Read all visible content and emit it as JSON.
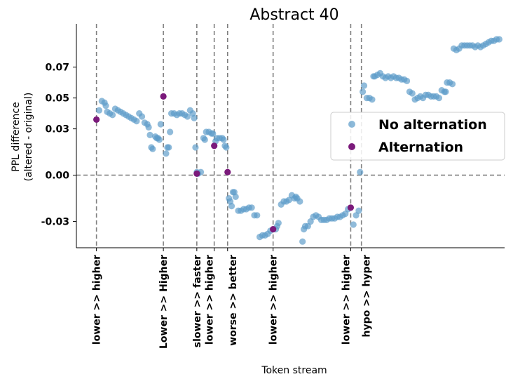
{
  "chart_data": {
    "type": "scatter",
    "title": "Abstract 40",
    "xlabel": "Token stream",
    "ylabel": [
      "PPL difference",
      "(altered - original)"
    ],
    "ylim": [
      -0.047,
      0.098
    ],
    "xlim": [
      -15,
      305
    ],
    "yticks": [
      {
        "value": 0.07,
        "label": "0.07"
      },
      {
        "value": 0.05,
        "label": "0.05"
      },
      {
        "value": 0.03,
        "label": "0.03"
      },
      {
        "value": 0.0,
        "label": "0.00"
      },
      {
        "value": -0.03,
        "label": "-0.03"
      }
    ],
    "hline": 0,
    "vlines": [
      {
        "x": 0,
        "label": "lower >> higher"
      },
      {
        "x": 50,
        "label": "Lower >> Higher"
      },
      {
        "x": 75,
        "label": "slower >> faster"
      },
      {
        "x": 88,
        "label": "lower >> higher"
      },
      {
        "x": 98,
        "label": "worse >> better"
      },
      {
        "x": 132,
        "label": "lower >> higher"
      },
      {
        "x": 190,
        "label": "lower >> higher"
      },
      {
        "x": 198,
        "label": "hypo >> hyper"
      }
    ],
    "legend": {
      "position": "right",
      "entries": [
        "No alternation",
        "Alternation"
      ]
    },
    "colors": {
      "no_alternation": "#5b9bc9",
      "alternation": "#7b1a7b",
      "grid_line": "#808080"
    },
    "series": [
      {
        "name": "No alternation",
        "points": [
          [
            2,
            0.042
          ],
          [
            4,
            0.048
          ],
          [
            6,
            0.047
          ],
          [
            7,
            0.045
          ],
          [
            8,
            0.041
          ],
          [
            10,
            0.04
          ],
          [
            12,
            0.039
          ],
          [
            14,
            0.043
          ],
          [
            16,
            0.042
          ],
          [
            18,
            0.041
          ],
          [
            20,
            0.04
          ],
          [
            22,
            0.039
          ],
          [
            24,
            0.038
          ],
          [
            26,
            0.037
          ],
          [
            28,
            0.036
          ],
          [
            30,
            0.035
          ],
          [
            32,
            0.04
          ],
          [
            34,
            0.038
          ],
          [
            36,
            0.034
          ],
          [
            38,
            0.033
          ],
          [
            39,
            0.031
          ],
          [
            40,
            0.026
          ],
          [
            41,
            0.018
          ],
          [
            42,
            0.017
          ],
          [
            44,
            0.025
          ],
          [
            45,
            0.024
          ],
          [
            46,
            0.024
          ],
          [
            47,
            0.023
          ],
          [
            48,
            0.033
          ],
          [
            52,
            0.014
          ],
          [
            53,
            0.018
          ],
          [
            54,
            0.018
          ],
          [
            55,
            0.028
          ],
          [
            56,
            0.04
          ],
          [
            58,
            0.04
          ],
          [
            60,
            0.039
          ],
          [
            62,
            0.04
          ],
          [
            64,
            0.04
          ],
          [
            66,
            0.039
          ],
          [
            68,
            0.038
          ],
          [
            70,
            0.042
          ],
          [
            72,
            0.04
          ],
          [
            73,
            0.037
          ],
          [
            74,
            0.018
          ],
          [
            75,
            0.002
          ],
          [
            76,
            0.001
          ],
          [
            78,
            0.002
          ],
          [
            80,
            0.024
          ],
          [
            81,
            0.023
          ],
          [
            82,
            0.028
          ],
          [
            84,
            0.028
          ],
          [
            86,
            0.027
          ],
          [
            87,
            0.027
          ],
          [
            89,
            0.022
          ],
          [
            90,
            0.024
          ],
          [
            92,
            0.024
          ],
          [
            94,
            0.024
          ],
          [
            95,
            0.023
          ],
          [
            96,
            0.019
          ],
          [
            97,
            0.018
          ],
          [
            99,
            -0.015
          ],
          [
            100,
            -0.017
          ],
          [
            101,
            -0.02
          ],
          [
            102,
            -0.011
          ],
          [
            103,
            -0.011
          ],
          [
            104,
            -0.014
          ],
          [
            106,
            -0.023
          ],
          [
            108,
            -0.023
          ],
          [
            110,
            -0.022
          ],
          [
            112,
            -0.022
          ],
          [
            114,
            -0.021
          ],
          [
            116,
            -0.021
          ],
          [
            118,
            -0.026
          ],
          [
            120,
            -0.026
          ],
          [
            122,
            -0.04
          ],
          [
            124,
            -0.039
          ],
          [
            126,
            -0.039
          ],
          [
            128,
            -0.038
          ],
          [
            130,
            -0.036
          ],
          [
            134,
            -0.035
          ],
          [
            135,
            -0.033
          ],
          [
            136,
            -0.031
          ],
          [
            138,
            -0.019
          ],
          [
            140,
            -0.017
          ],
          [
            142,
            -0.017
          ],
          [
            144,
            -0.016
          ],
          [
            146,
            -0.013
          ],
          [
            148,
            -0.015
          ],
          [
            149,
            -0.014
          ],
          [
            150,
            -0.015
          ],
          [
            152,
            -0.017
          ],
          [
            154,
            -0.043
          ],
          [
            155,
            -0.035
          ],
          [
            156,
            -0.033
          ],
          [
            158,
            -0.033
          ],
          [
            160,
            -0.03
          ],
          [
            162,
            -0.027
          ],
          [
            164,
            -0.026
          ],
          [
            166,
            -0.027
          ],
          [
            168,
            -0.029
          ],
          [
            170,
            -0.029
          ],
          [
            172,
            -0.029
          ],
          [
            174,
            -0.028
          ],
          [
            176,
            -0.028
          ],
          [
            178,
            -0.028
          ],
          [
            180,
            -0.027
          ],
          [
            182,
            -0.027
          ],
          [
            184,
            -0.026
          ],
          [
            186,
            -0.025
          ],
          [
            188,
            -0.022
          ],
          [
            192,
            -0.032
          ],
          [
            194,
            -0.026
          ],
          [
            196,
            -0.023
          ],
          [
            197,
            0.002
          ],
          [
            199,
            0.054
          ],
          [
            200,
            0.058
          ],
          [
            202,
            0.05
          ],
          [
            204,
            0.05
          ],
          [
            206,
            0.049
          ],
          [
            207,
            0.064
          ],
          [
            208,
            0.064
          ],
          [
            210,
            0.065
          ],
          [
            212,
            0.066
          ],
          [
            214,
            0.064
          ],
          [
            216,
            0.063
          ],
          [
            218,
            0.064
          ],
          [
            220,
            0.063
          ],
          [
            222,
            0.064
          ],
          [
            224,
            0.063
          ],
          [
            226,
            0.063
          ],
          [
            228,
            0.062
          ],
          [
            230,
            0.062
          ],
          [
            232,
            0.061
          ],
          [
            234,
            0.054
          ],
          [
            236,
            0.053
          ],
          [
            238,
            0.049
          ],
          [
            240,
            0.05
          ],
          [
            242,
            0.051
          ],
          [
            244,
            0.05
          ],
          [
            246,
            0.052
          ],
          [
            248,
            0.052
          ],
          [
            250,
            0.051
          ],
          [
            252,
            0.051
          ],
          [
            254,
            0.051
          ],
          [
            256,
            0.05
          ],
          [
            258,
            0.055
          ],
          [
            260,
            0.054
          ],
          [
            261,
            0.054
          ],
          [
            262,
            0.06
          ],
          [
            264,
            0.06
          ],
          [
            266,
            0.059
          ],
          [
            267,
            0.082
          ],
          [
            269,
            0.081
          ],
          [
            271,
            0.082
          ],
          [
            273,
            0.084
          ],
          [
            275,
            0.084
          ],
          [
            277,
            0.084
          ],
          [
            279,
            0.084
          ],
          [
            281,
            0.084
          ],
          [
            283,
            0.083
          ],
          [
            285,
            0.084
          ],
          [
            287,
            0.083
          ],
          [
            289,
            0.084
          ],
          [
            291,
            0.085
          ],
          [
            293,
            0.086
          ],
          [
            295,
            0.087
          ],
          [
            297,
            0.087
          ],
          [
            299,
            0.088
          ],
          [
            301,
            0.088
          ]
        ]
      },
      {
        "name": "Alternation",
        "points": [
          [
            0,
            0.036
          ],
          [
            50,
            0.051
          ],
          [
            75,
            0.001
          ],
          [
            88,
            0.019
          ],
          [
            98,
            0.002
          ],
          [
            132,
            -0.035
          ],
          [
            190,
            -0.021
          ]
        ]
      }
    ]
  }
}
